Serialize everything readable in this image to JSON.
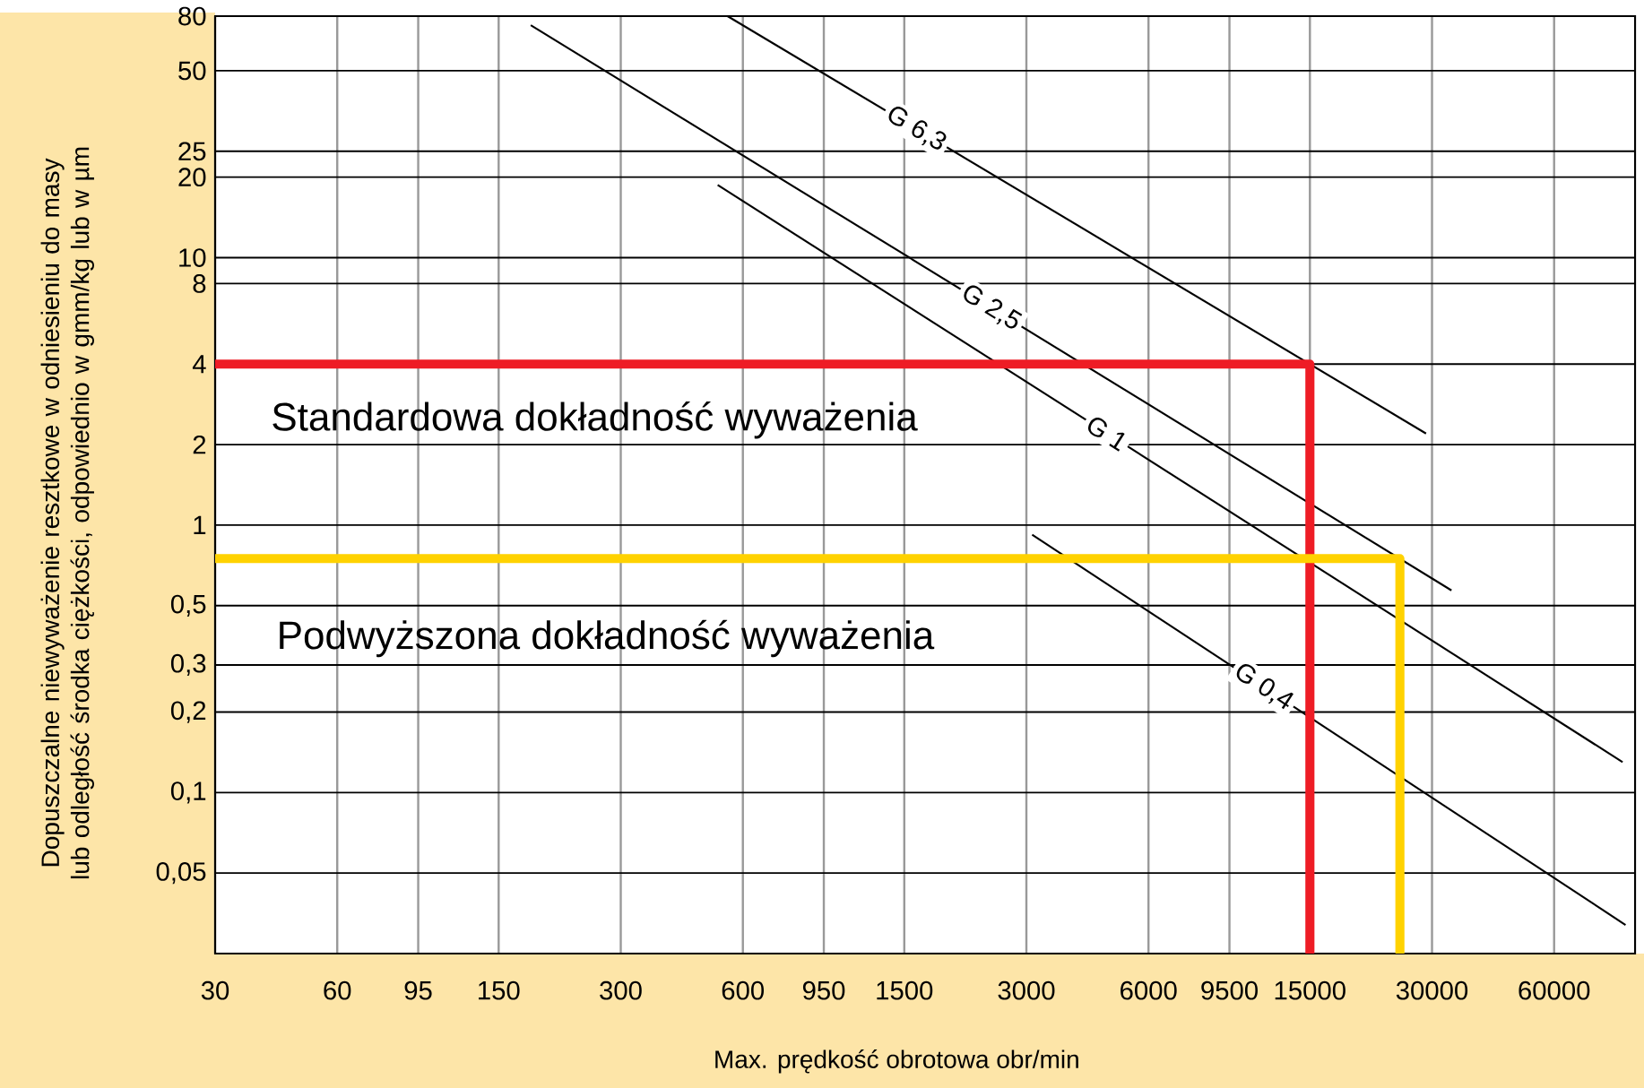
{
  "chart_data": {
    "type": "line",
    "xlabel": "Max. prędkość obrotowa obr/min",
    "ylabel": "Dopuszczalne niewyważenie resztkowe w odniesieniu do masy lub odległość środka ciężkości, odpowiednio w gmm/kg lub w µm",
    "log": "xy",
    "grid": true,
    "marker": "none",
    "line_style": "solid",
    "xlim": [
      30,
      95000
    ],
    "xticks": [
      30,
      60,
      95,
      150,
      300,
      600,
      950,
      1500,
      3000,
      6000,
      9500,
      15000,
      30000,
      60000
    ],
    "ylim": [
      0.025,
      80
    ],
    "yticks": [
      80,
      50,
      25,
      20,
      10,
      8,
      4,
      2,
      1,
      {
        "value": 0.5,
        "label": "0,5"
      },
      {
        "value": 0.3,
        "label": "0,3"
      },
      {
        "value": 0.2,
        "label": "0,2"
      },
      {
        "value": 0.1,
        "label": "0,1"
      },
      {
        "value": 0.05,
        "label": "0,05"
      }
    ],
    "series": [
      {
        "name": "G 6,3",
        "color": "#000000",
        "x": [
          550,
          29000
        ],
        "values": [
          80,
          2.2
        ]
      },
      {
        "name": "G 2,5",
        "color": "#000000",
        "x": [
          180,
          33500
        ],
        "values": [
          74,
          0.57
        ]
      },
      {
        "name": "G 1",
        "color": "#000000",
        "x": [
          520,
          88500
        ],
        "values": [
          18.7,
          0.13
        ]
      },
      {
        "name": "G 0,4",
        "color": "#000000",
        "x": [
          3100,
          90000
        ],
        "values": [
          0.92,
          0.032
        ]
      },
      {
        "color": "#ee1c25",
        "x": [
          30,
          15000,
          15000
        ],
        "values": [
          4,
          4,
          0.025
        ]
      },
      {
        "color": "#ffd200",
        "x": [
          30,
          25000,
          25000
        ],
        "values": [
          0.75,
          0.75,
          0.025
        ]
      }
    ],
    "annotations": [
      "Standardowa dokładność wyważenia",
      "Podwyższona dokładność wyważenia"
    ]
  }
}
